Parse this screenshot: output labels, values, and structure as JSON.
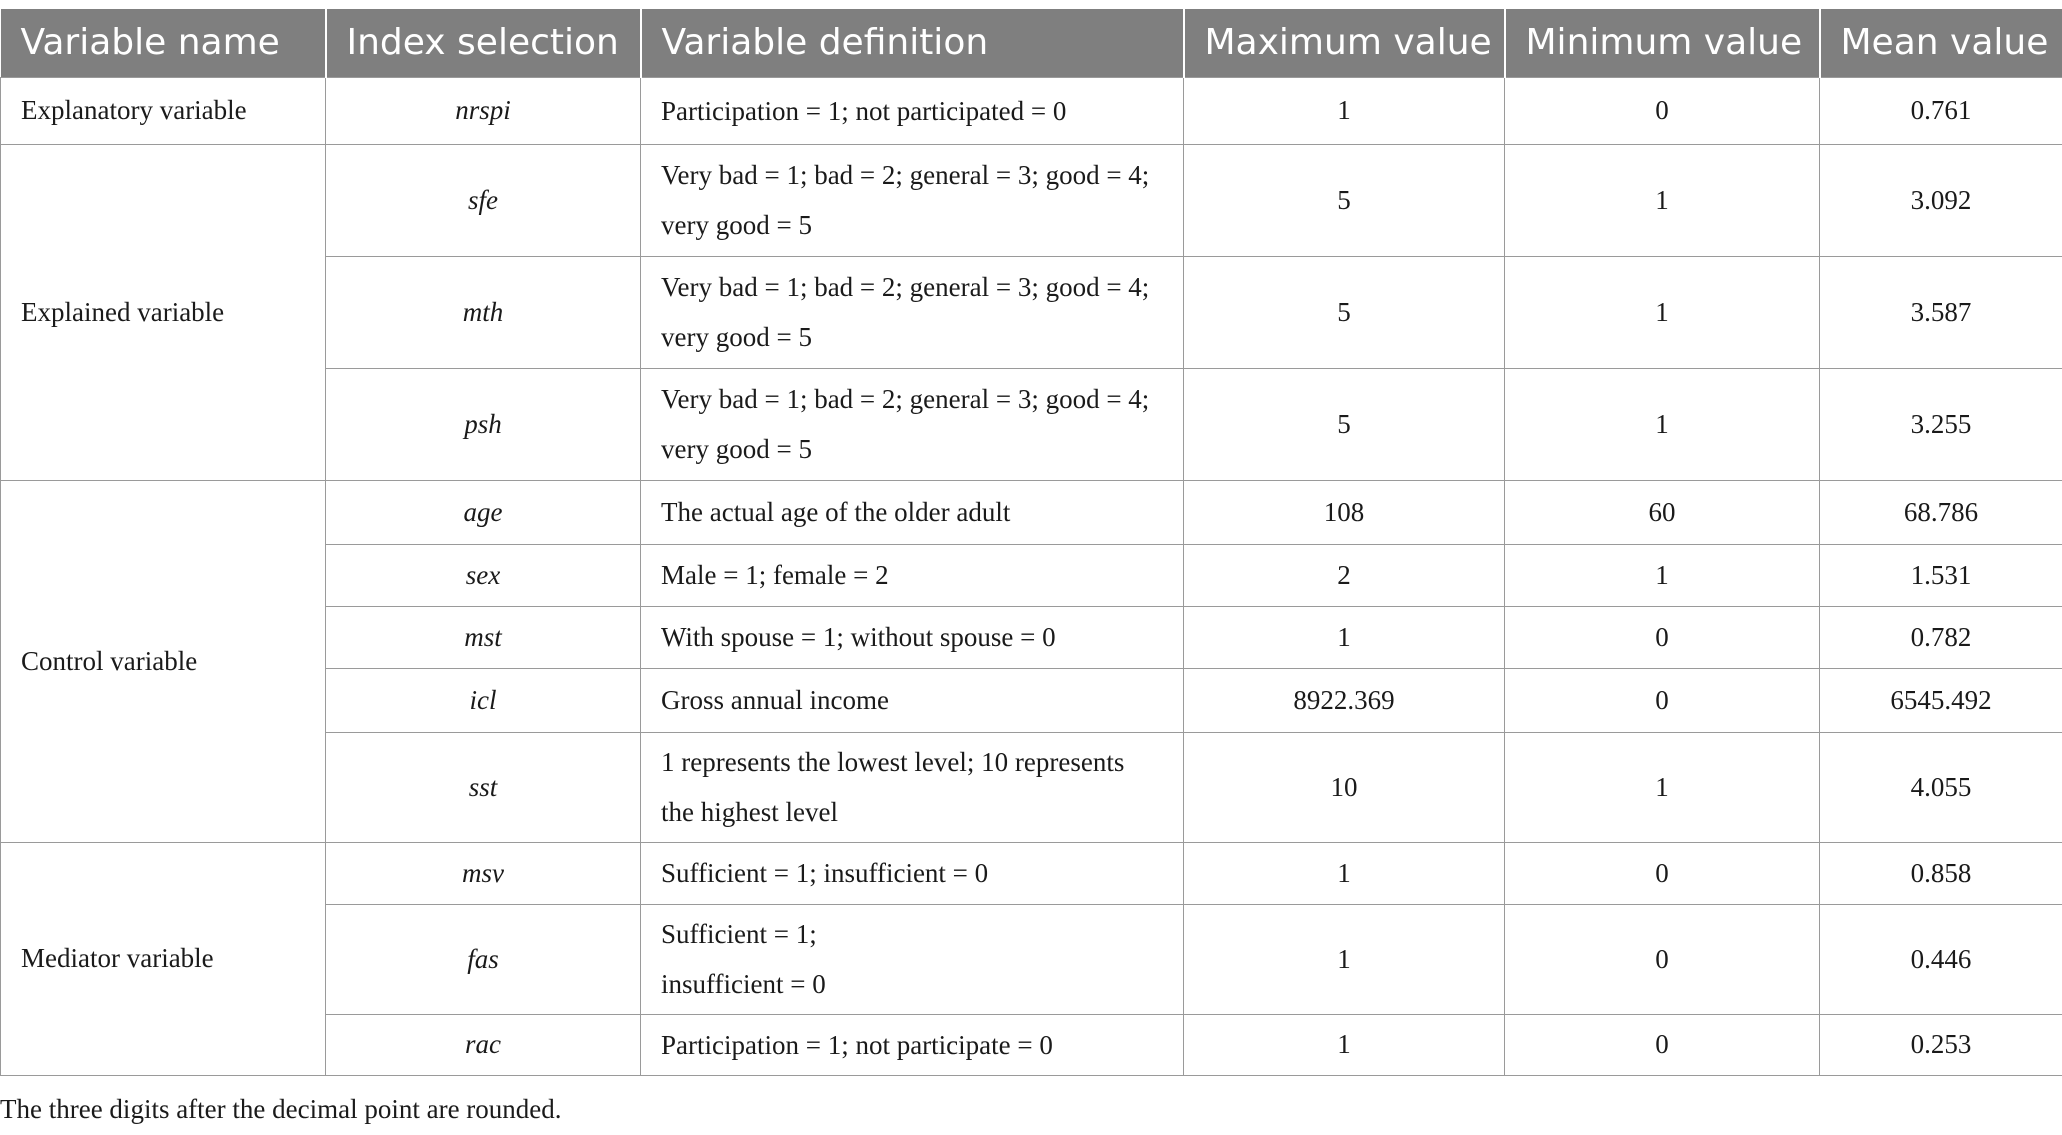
{
  "table": {
    "headers": [
      "Variable name",
      "Index selection",
      "Variable definition",
      "Maximum value",
      "Minimum value",
      "Mean value"
    ],
    "rows": [
      {
        "group": "Explanatory variable",
        "index": "nrspi",
        "def_line1": "Participation = 1; not participated = 0",
        "def_line2": "",
        "max": "1",
        "min": "0",
        "mean": "0.761"
      },
      {
        "group": "Explained variable",
        "index": "sfe",
        "def_line1": "Very bad = 1; bad = 2; general = 3; good = 4;",
        "def_line2": "very good = 5",
        "max": "5",
        "min": "1",
        "mean": "3.092"
      },
      {
        "group": "",
        "index": "mth",
        "def_line1": "Very bad = 1; bad = 2; general = 3; good = 4;",
        "def_line2": "very good = 5",
        "max": "5",
        "min": "1",
        "mean": "3.587"
      },
      {
        "group": "",
        "index": "psh",
        "def_line1": "Very bad = 1; bad = 2; general = 3; good = 4;",
        "def_line2": "very good = 5",
        "max": "5",
        "min": "1",
        "mean": "3.255"
      },
      {
        "group": "Control variable",
        "index": "age",
        "def_line1": "The actual age of the older adult",
        "def_line2": "",
        "max": "108",
        "min": "60",
        "mean": "68.786"
      },
      {
        "group": "",
        "index": "sex",
        "def_line1": "Male = 1; female = 2",
        "def_line2": "",
        "max": "2",
        "min": "1",
        "mean": "1.531"
      },
      {
        "group": "",
        "index": "mst",
        "def_line1": "With spouse = 1; without spouse = 0",
        "def_line2": "",
        "max": "1",
        "min": "0",
        "mean": "0.782"
      },
      {
        "group": "",
        "index": "icl",
        "def_line1": "Gross annual income",
        "def_line2": "",
        "max": "8922.369",
        "min": "0",
        "mean": "6545.492"
      },
      {
        "group": "",
        "index": "sst",
        "def_line1": "1 represents the lowest level; 10 represents",
        "def_line2": "the highest level",
        "max": "10",
        "min": "1",
        "mean": "4.055"
      },
      {
        "group": "Mediator variable",
        "index": "msv",
        "def_line1": "Sufficient = 1; insufficient = 0",
        "def_line2": "",
        "max": "1",
        "min": "0",
        "mean": "0.858"
      },
      {
        "group": "",
        "index": "fas",
        "def_line1": "Sufficient = 1;",
        "def_line2": "insufficient = 0",
        "max": "1",
        "min": "0",
        "mean": "0.446"
      },
      {
        "group": "",
        "index": "rac",
        "def_line1": "Participation = 1; not participate = 0",
        "def_line2": "",
        "max": "1",
        "min": "0",
        "mean": "0.253"
      }
    ]
  },
  "note": "The three digits after the decimal point are rounded."
}
